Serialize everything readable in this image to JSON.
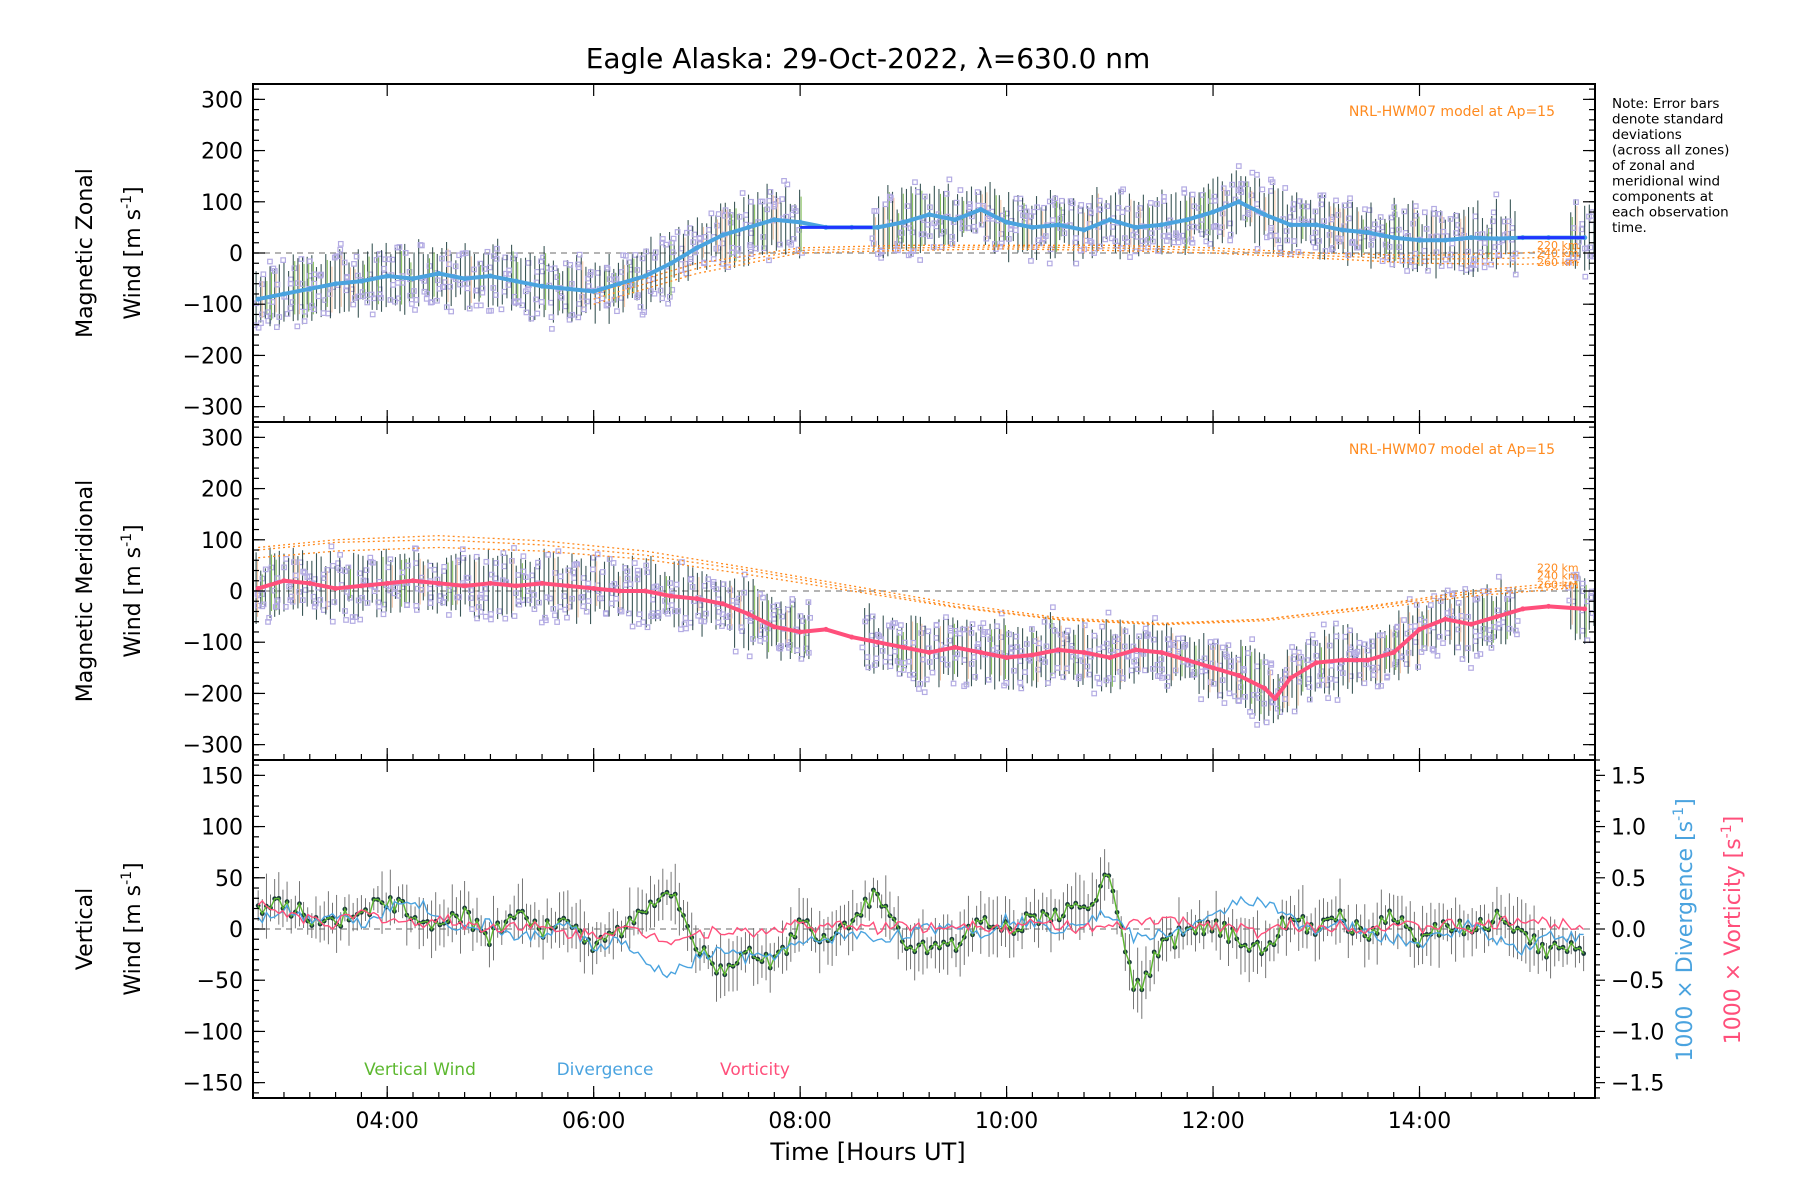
{
  "title": "Eagle Alaska: 29-Oct-2022, λ=630.0 nm",
  "note_lines": [
    "Note: Error bars",
    "denote standard",
    "deviations",
    "(across all zones)",
    "of zonal and",
    "meridional wind",
    "components at",
    "each observation",
    "time."
  ],
  "colors": {
    "zonal": "#4aa3df",
    "meridional": "#ff4f7b",
    "vertical": "#5cb82f",
    "divergence": "#4aa3df",
    "vorticity": "#ff4f7b",
    "model": "#ff8a1e",
    "zone_points": "#b3abe3",
    "error_bar": "#1a3a3a",
    "gap_line_zonal": "#1f35ff"
  },
  "chart_data": [
    {
      "type": "scatter",
      "panel": "zonal",
      "ylabel_line1": "Magnetic Zonal",
      "ylabel_line2": "Wind [m s",
      "ylabel_sup": "-1",
      "ylabel_close": "]",
      "ylim": [
        -330,
        330
      ],
      "yticks": [
        300,
        200,
        100,
        0,
        -100,
        -200,
        -300
      ],
      "ytick_labels": [
        "300",
        "200",
        "100",
        "0",
        "−100",
        "−200",
        "−300"
      ],
      "model_label": "NRL-HWM07 model at Ap=15",
      "model_alt_labels": [
        "220 km",
        "240 km",
        "260 km"
      ],
      "mean_series": {
        "x": [
          2.75,
          3.0,
          3.25,
          3.5,
          3.75,
          4.0,
          4.25,
          4.5,
          4.75,
          5.0,
          5.25,
          5.5,
          5.75,
          6.0,
          6.25,
          6.5,
          6.75,
          7.0,
          7.25,
          7.5,
          7.75,
          8.0,
          8.25,
          8.5,
          8.75,
          9.0,
          9.25,
          9.5,
          9.75,
          10.0,
          10.25,
          10.5,
          10.75,
          11.0,
          11.25,
          11.5,
          11.75,
          12.0,
          12.25,
          12.5,
          12.75,
          13.0,
          13.25,
          13.5,
          13.75,
          14.0,
          14.25,
          14.5,
          14.75,
          15.0,
          15.25,
          15.6
        ],
        "y": [
          -90,
          -80,
          -70,
          -60,
          -55,
          -45,
          -50,
          -40,
          -50,
          -45,
          -55,
          -65,
          -70,
          -75,
          -60,
          -45,
          -20,
          10,
          35,
          50,
          65,
          60,
          50,
          50,
          50,
          60,
          75,
          65,
          85,
          60,
          50,
          55,
          45,
          65,
          50,
          55,
          65,
          80,
          100,
          75,
          55,
          55,
          45,
          40,
          30,
          25,
          25,
          30,
          28,
          30,
          30,
          30
        ]
      },
      "model_curves": [
        {
          "altitude": "220 km",
          "x": [
            6.0,
            7.0,
            8.0,
            9.0,
            10.0,
            11.0,
            12.0,
            13.0,
            14.0,
            15.0,
            15.6
          ],
          "y": [
            -80,
            -20,
            10,
            15,
            15,
            15,
            10,
            0,
            -5,
            0,
            10
          ]
        },
        {
          "altitude": "240 km",
          "x": [
            6.0,
            7.0,
            8.0,
            9.0,
            10.0,
            11.0,
            12.0,
            13.0,
            14.0,
            15.0,
            15.6
          ],
          "y": [
            -90,
            -30,
            5,
            10,
            12,
            10,
            5,
            -5,
            -12,
            -10,
            -5
          ]
        },
        {
          "altitude": "260 km",
          "x": [
            6.0,
            7.0,
            8.0,
            9.0,
            10.0,
            11.0,
            12.0,
            13.0,
            14.0,
            15.0,
            15.6
          ],
          "y": [
            -100,
            -40,
            0,
            5,
            8,
            5,
            0,
            -10,
            -20,
            -22,
            -18
          ]
        }
      ]
    },
    {
      "type": "scatter",
      "panel": "meridional",
      "ylabel_line1": "Magnetic Meridional",
      "ylabel_line2": "Wind [m s",
      "ylabel_sup": "-1",
      "ylabel_close": "]",
      "ylim": [
        -330,
        330
      ],
      "yticks": [
        300,
        200,
        100,
        0,
        -100,
        -200,
        -300
      ],
      "ytick_labels": [
        "300",
        "200",
        "100",
        "0",
        "−100",
        "−200",
        "−300"
      ],
      "model_label": "NRL-HWM07 model at Ap=15",
      "model_alt_labels": [
        "220 km",
        "240 km",
        "260 km"
      ],
      "mean_series": {
        "x": [
          2.75,
          3.0,
          3.25,
          3.5,
          3.75,
          4.0,
          4.25,
          4.5,
          4.75,
          5.0,
          5.25,
          5.5,
          5.75,
          6.0,
          6.25,
          6.5,
          6.75,
          7.0,
          7.25,
          7.5,
          7.75,
          8.0,
          8.25,
          8.5,
          8.75,
          9.0,
          9.25,
          9.5,
          9.75,
          10.0,
          10.25,
          10.5,
          10.75,
          11.0,
          11.25,
          11.5,
          11.75,
          12.0,
          12.25,
          12.5,
          12.6,
          12.75,
          13.0,
          13.25,
          13.5,
          13.75,
          14.0,
          14.25,
          14.5,
          14.75,
          15.0,
          15.25,
          15.6
        ],
        "y": [
          5,
          20,
          15,
          5,
          10,
          15,
          20,
          15,
          10,
          15,
          10,
          15,
          10,
          5,
          0,
          0,
          -10,
          -15,
          -25,
          -45,
          -70,
          -80,
          -75,
          -90,
          -100,
          -110,
          -120,
          -110,
          -120,
          -130,
          -125,
          -115,
          -120,
          -130,
          -115,
          -120,
          -135,
          -150,
          -165,
          -190,
          -210,
          -170,
          -140,
          -135,
          -135,
          -120,
          -75,
          -55,
          -65,
          -50,
          -35,
          -30,
          -35
        ]
      },
      "model_curves": [
        {
          "altitude": "220 km",
          "x": [
            2.75,
            3.5,
            4.5,
            5.5,
            6.5,
            7.5,
            8.5,
            9.5,
            10.5,
            11.5,
            12.5,
            13.5,
            14.5,
            15.6
          ],
          "y": [
            80,
            95,
            100,
            90,
            70,
            40,
            5,
            -30,
            -55,
            -65,
            -55,
            -30,
            0,
            20
          ]
        },
        {
          "altitude": "240 km",
          "x": [
            2.75,
            3.5,
            4.5,
            5.5,
            6.5,
            7.5,
            8.5,
            9.5,
            10.5,
            11.5,
            12.5,
            13.5,
            14.5,
            15.6
          ],
          "y": [
            85,
            100,
            108,
            98,
            78,
            45,
            10,
            -25,
            -52,
            -63,
            -55,
            -32,
            -5,
            15
          ]
        },
        {
          "altitude": "260 km",
          "x": [
            2.75,
            3.5,
            4.5,
            5.5,
            6.5,
            7.5,
            8.5,
            9.5,
            10.5,
            11.5,
            12.5,
            13.5,
            14.5,
            15.6
          ],
          "y": [
            65,
            78,
            85,
            78,
            62,
            32,
            0,
            -32,
            -56,
            -66,
            -58,
            -36,
            -10,
            8
          ]
        }
      ]
    },
    {
      "type": "line",
      "panel": "vertical",
      "ylabel_line1": "Vertical",
      "ylabel_line2": "Wind [m s",
      "ylabel_sup": "-1",
      "ylabel_close": "]",
      "ylim": [
        -165,
        165
      ],
      "yticks": [
        150,
        100,
        50,
        0,
        -50,
        -100,
        -150
      ],
      "ytick_labels": [
        "150",
        "100",
        "50",
        "0",
        "−50",
        "−100",
        "−150"
      ],
      "right_axis": {
        "ylim": [
          -1.65,
          1.65
        ],
        "yticks": [
          1.5,
          1.0,
          0.5,
          0.0,
          -0.5,
          -1.0,
          -1.5
        ],
        "ytick_labels": [
          "1.5",
          "1.0",
          "0.5",
          "0.0",
          "−0.5",
          "−1.0",
          "−1.5"
        ],
        "label_divergence": "1000 × Divergence [s",
        "label_vorticity": "1000 × Vorticity [s",
        "label_sup": "-1",
        "label_close": "]"
      },
      "legend": [
        "Vertical Wind",
        "Divergence",
        "Vorticity"
      ],
      "series": [
        {
          "name": "Vertical Wind",
          "x": [
            2.75,
            3.0,
            3.25,
            3.5,
            3.75,
            4.0,
            4.25,
            4.5,
            4.75,
            5.0,
            5.25,
            5.5,
            5.75,
            6.0,
            6.25,
            6.5,
            6.75,
            7.0,
            7.25,
            7.5,
            7.75,
            8.0,
            8.25,
            8.5,
            8.75,
            9.0,
            9.25,
            9.5,
            9.75,
            10.0,
            10.25,
            10.5,
            10.75,
            11.0,
            11.25,
            11.5,
            11.75,
            12.0,
            12.25,
            12.5,
            12.75,
            13.0,
            13.25,
            13.5,
            13.75,
            14.0,
            14.25,
            14.5,
            14.75,
            15.0,
            15.25,
            15.6
          ],
          "y": [
            15,
            25,
            10,
            5,
            20,
            25,
            15,
            5,
            15,
            -10,
            20,
            0,
            10,
            -15,
            -5,
            20,
            40,
            -20,
            -45,
            -15,
            -35,
            5,
            -10,
            10,
            35,
            -10,
            -25,
            -15,
            5,
            0,
            10,
            15,
            20,
            50,
            -60,
            -20,
            0,
            5,
            -10,
            -20,
            15,
            0,
            10,
            -5,
            15,
            -10,
            5,
            0,
            10,
            -10,
            -20,
            -20
          ]
        },
        {
          "name": "Divergence",
          "x": [
            2.75,
            3.0,
            3.25,
            3.5,
            3.75,
            4.0,
            4.25,
            4.5,
            4.75,
            5.0,
            5.25,
            5.5,
            5.75,
            6.0,
            6.25,
            6.5,
            6.75,
            7.0,
            7.25,
            7.5,
            7.75,
            8.0,
            8.25,
            8.5,
            8.75,
            9.0,
            9.25,
            9.5,
            9.75,
            10.0,
            10.25,
            10.5,
            10.75,
            11.0,
            11.25,
            11.5,
            11.75,
            12.0,
            12.25,
            12.5,
            12.75,
            13.0,
            13.25,
            13.5,
            13.75,
            14.0,
            14.25,
            14.5,
            14.75,
            15.0,
            15.25,
            15.6
          ],
          "y": [
            0.1,
            0.2,
            0.1,
            0.15,
            0.05,
            0.2,
            0.3,
            0.1,
            0.0,
            0.05,
            -0.1,
            -0.05,
            0.05,
            -0.2,
            -0.1,
            -0.35,
            -0.45,
            -0.3,
            -0.2,
            -0.3,
            -0.25,
            -0.15,
            -0.1,
            -0.05,
            -0.1,
            -0.05,
            0.0,
            0.05,
            -0.05,
            0.1,
            0.05,
            0.0,
            0.1,
            0.15,
            -0.1,
            -0.05,
            0.0,
            0.1,
            0.3,
            0.25,
            0.1,
            0.0,
            0.05,
            -0.05,
            -0.1,
            -0.15,
            -0.05,
            0.05,
            -0.1,
            -0.2,
            -0.05,
            -0.1
          ]
        },
        {
          "name": "Vorticity",
          "x": [
            2.75,
            3.0,
            3.25,
            3.5,
            3.75,
            4.0,
            4.25,
            4.5,
            4.75,
            5.0,
            5.25,
            5.5,
            5.75,
            6.0,
            6.25,
            6.5,
            6.75,
            7.0,
            7.25,
            7.5,
            7.75,
            8.0,
            8.25,
            8.5,
            8.75,
            9.0,
            9.25,
            9.5,
            9.75,
            10.0,
            10.25,
            10.5,
            10.75,
            11.0,
            11.25,
            11.5,
            11.75,
            12.0,
            12.25,
            12.5,
            12.75,
            13.0,
            13.25,
            13.5,
            13.75,
            14.0,
            14.25,
            14.5,
            14.75,
            15.0,
            15.25,
            15.6
          ],
          "y": [
            0.25,
            0.15,
            0.1,
            0.05,
            0.15,
            0.1,
            0.05,
            0.1,
            0.05,
            0.0,
            0.05,
            0.0,
            -0.05,
            -0.05,
            0.0,
            -0.05,
            -0.1,
            -0.05,
            0.0,
            -0.05,
            0.0,
            0.05,
            0.0,
            0.05,
            0.0,
            0.05,
            0.0,
            0.05,
            0.05,
            0.0,
            0.05,
            0.05,
            0.0,
            0.0,
            0.05,
            0.1,
            0.05,
            0.05,
            0.0,
            -0.05,
            0.05,
            0.0,
            0.05,
            0.0,
            0.05,
            0.0,
            0.05,
            0.0,
            0.05,
            0.1,
            0.05,
            0.05
          ]
        }
      ]
    }
  ],
  "x_axis": {
    "label": "Time [Hours UT]",
    "xlim": [
      2.7,
      15.7
    ],
    "ticks": [
      4,
      6,
      8,
      10,
      12,
      14
    ],
    "tick_labels": [
      "04:00",
      "06:00",
      "08:00",
      "10:00",
      "12:00",
      "14:00"
    ]
  }
}
